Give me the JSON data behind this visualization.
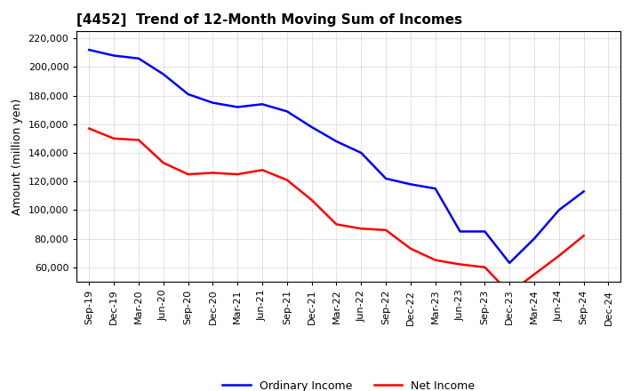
{
  "title": "[4452]  Trend of 12-Month Moving Sum of Incomes",
  "ylabel": "Amount (million yen)",
  "x_labels": [
    "Sep-19",
    "Dec-19",
    "Mar-20",
    "Jun-20",
    "Sep-20",
    "Dec-20",
    "Mar-21",
    "Jun-21",
    "Sep-21",
    "Dec-21",
    "Mar-22",
    "Jun-22",
    "Sep-22",
    "Dec-22",
    "Mar-23",
    "Jun-23",
    "Sep-23",
    "Dec-23",
    "Mar-24",
    "Jun-24",
    "Sep-24",
    "Dec-24"
  ],
  "ordinary_income": [
    212000,
    208000,
    206000,
    195000,
    181000,
    175000,
    172000,
    174000,
    169000,
    158000,
    148000,
    140000,
    122000,
    118000,
    115000,
    85000,
    85000,
    63000,
    80000,
    100000,
    113000,
    null
  ],
  "net_income": [
    157000,
    150000,
    149000,
    133000,
    125000,
    126000,
    125000,
    128000,
    121000,
    107000,
    90000,
    87000,
    86000,
    73000,
    65000,
    62000,
    60000,
    42000,
    55000,
    68000,
    82000,
    null
  ],
  "ordinary_income_color": "#0000ff",
  "net_income_color": "#ff0000",
  "background_color": "#ffffff",
  "grid_color": "#999999",
  "ylim_min": 50000,
  "ylim_max": 225000,
  "yticks": [
    60000,
    80000,
    100000,
    120000,
    140000,
    160000,
    180000,
    200000,
    220000
  ],
  "legend_labels": [
    "Ordinary Income",
    "Net Income"
  ],
  "line_width": 1.8,
  "title_fontsize": 11,
  "tick_fontsize": 8,
  "ylabel_fontsize": 9
}
